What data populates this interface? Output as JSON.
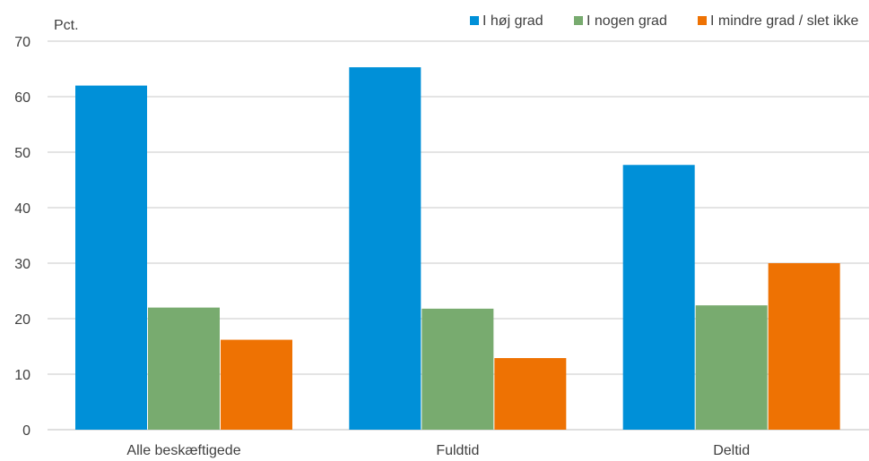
{
  "chart_data": {
    "type": "bar",
    "unit_label": "Pct.",
    "categories": [
      "Alle beskæftigede",
      "Fuldtid",
      "Deltid"
    ],
    "series": [
      {
        "name": "I høj grad",
        "color": "#0090d8",
        "values": [
          62,
          65.3,
          47.7
        ]
      },
      {
        "name": "I nogen grad",
        "color": "#78ab6f",
        "values": [
          22,
          21.8,
          22.4
        ]
      },
      {
        "name": "I mindre grad / slet ikke",
        "color": "#ee7203",
        "values": [
          16.2,
          12.9,
          30
        ]
      }
    ],
    "ylim": [
      0,
      70
    ],
    "yticks": [
      0,
      10,
      20,
      30,
      40,
      50,
      60,
      70
    ],
    "grid": true,
    "legend_position": "top-right"
  }
}
